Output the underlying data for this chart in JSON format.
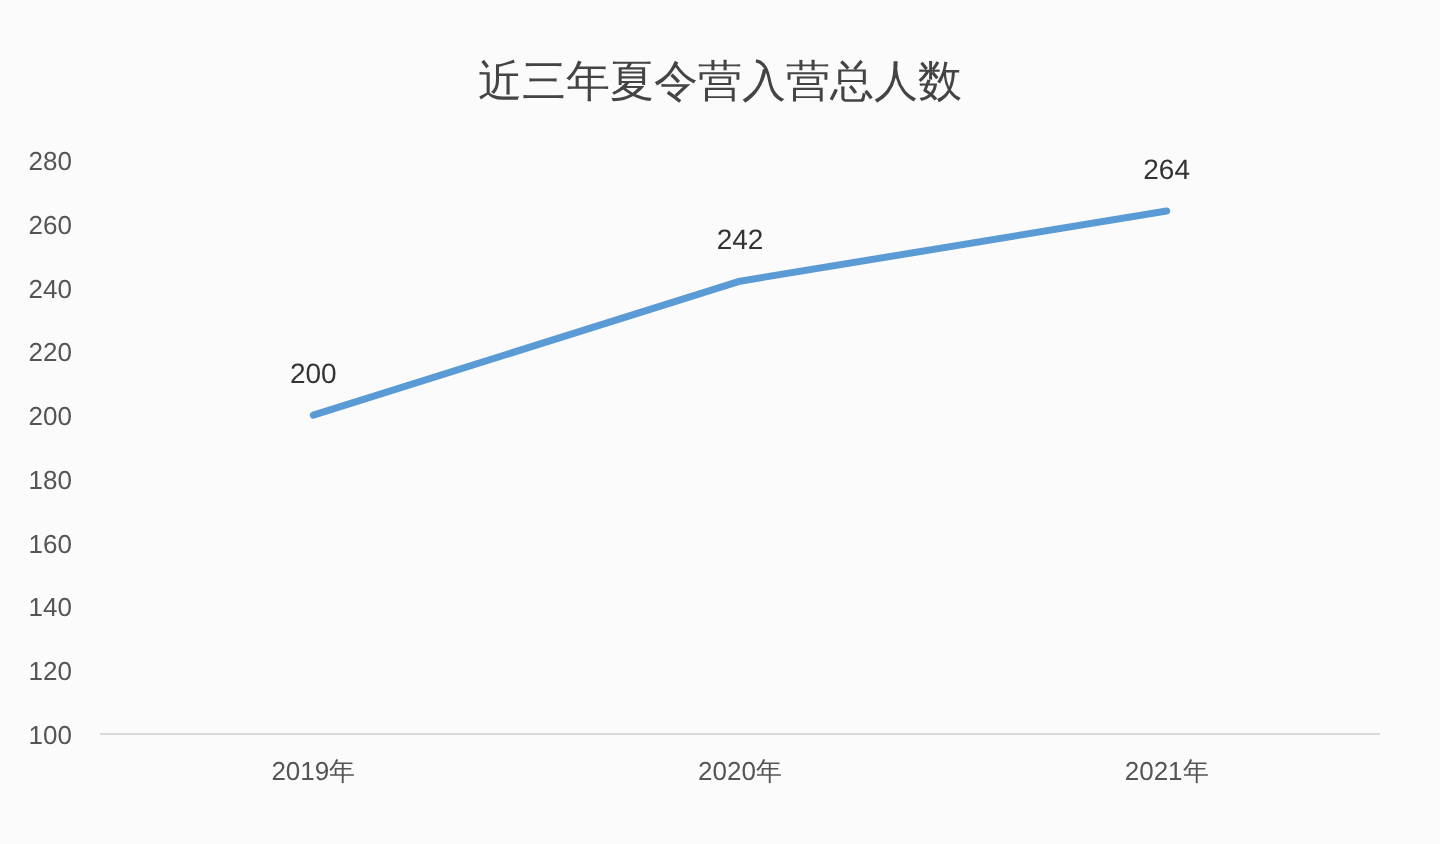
{
  "chart_data": {
    "type": "line",
    "title": "近三年夏令营入营总人数",
    "categories": [
      "2019年",
      "2020年",
      "2021年"
    ],
    "series": [
      {
        "color": "#5b9bd5",
        "values": [
          200,
          242,
          264
        ]
      }
    ],
    "ylim": [
      100,
      280
    ],
    "yticks": [
      100,
      120,
      140,
      160,
      180,
      200,
      220,
      240,
      260,
      280
    ],
    "data_labels": true,
    "grid": false,
    "marker": "none",
    "line_style": "solid"
  }
}
